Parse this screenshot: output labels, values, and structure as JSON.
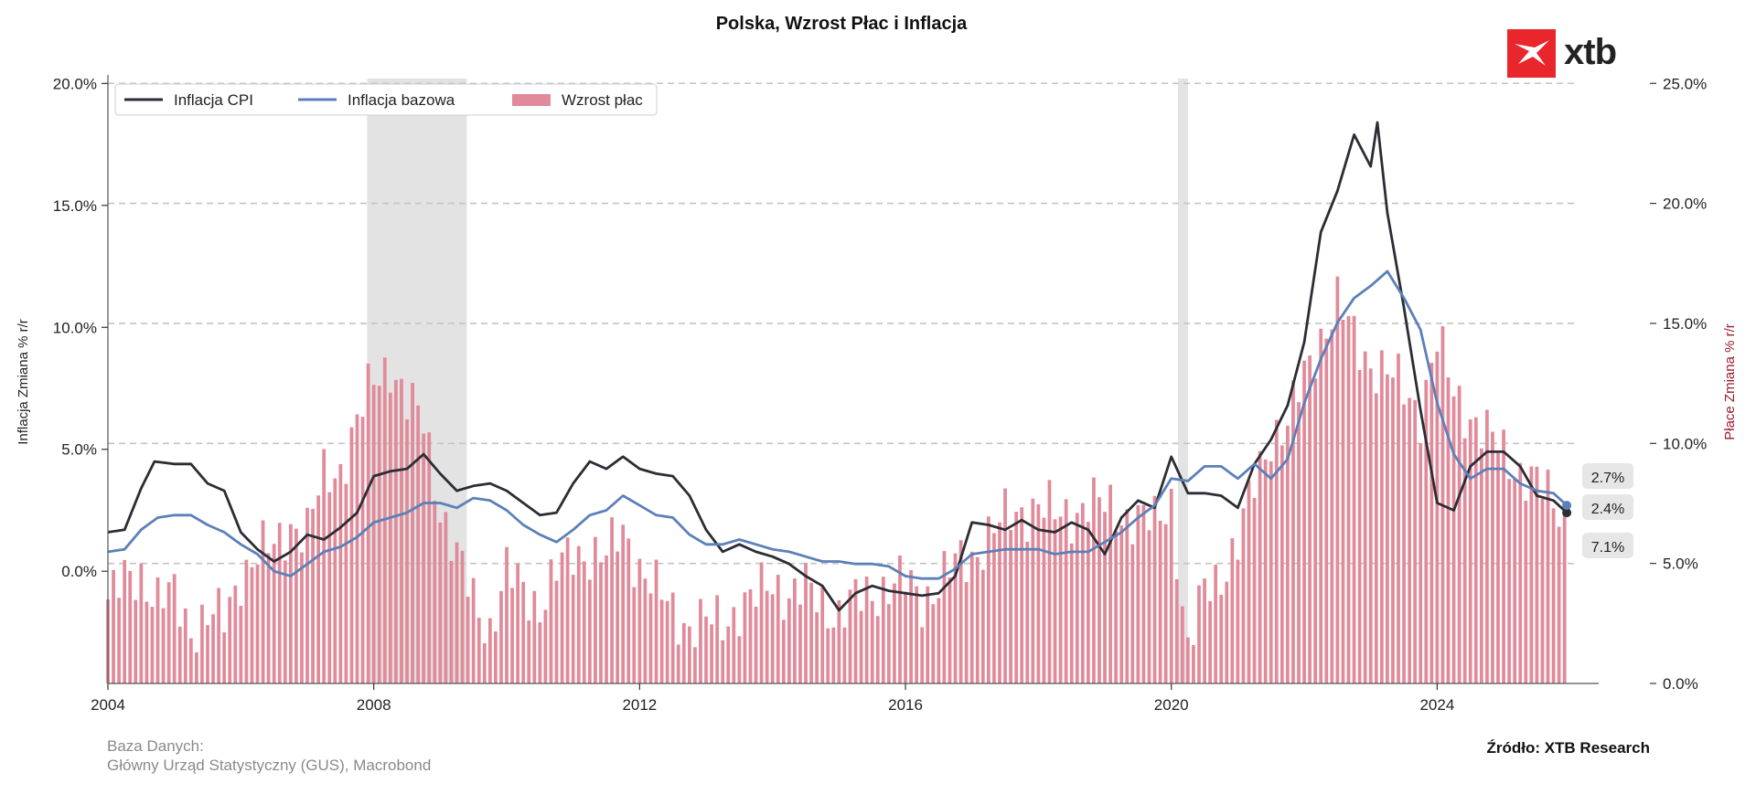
{
  "chart_data": {
    "type": "bar+line",
    "title": "Polska, Wzrost Płac i Inflacja",
    "left_axis": {
      "label": "Inflacja Zmiana % r/r",
      "range": [
        -4.6,
        20.2
      ],
      "ticks": [
        0,
        5,
        10,
        15,
        20
      ],
      "tick_labels": [
        "0.0%",
        "5.0%",
        "10.0%",
        "15.0%",
        "20.0%"
      ]
    },
    "right_axis": {
      "label": "Płace Zmiana % r/r",
      "range": [
        0,
        25.2
      ],
      "ticks": [
        0,
        5,
        10,
        15,
        20,
        25
      ],
      "tick_labels": [
        "0.0%",
        "5.0%",
        "10.0%",
        "15.0%",
        "20.0%",
        "25.0%"
      ]
    },
    "x_axis": {
      "range": [
        2004.0,
        2026.1
      ],
      "ticks": [
        2004,
        2008,
        2012,
        2016,
        2020,
        2024
      ],
      "tick_labels": [
        "2004",
        "2008",
        "2012",
        "2016",
        "2020",
        "2024"
      ]
    },
    "grid": "horizontal dashed",
    "legend_position": "top-left",
    "recession_shading": [
      [
        2007.9,
        2009.4
      ],
      [
        2020.1,
        2020.25
      ]
    ],
    "series": [
      {
        "name": "Inflacja CPI",
        "axis": "left",
        "style": "line",
        "color": "#2b2d35",
        "points": [
          [
            2004.0,
            1.6
          ],
          [
            2004.25,
            1.7
          ],
          [
            2004.5,
            3.4
          ],
          [
            2004.7,
            4.5
          ],
          [
            2005.0,
            4.4
          ],
          [
            2005.25,
            4.4
          ],
          [
            2005.5,
            3.6
          ],
          [
            2005.75,
            3.3
          ],
          [
            2006.0,
            1.6
          ],
          [
            2006.25,
            0.9
          ],
          [
            2006.5,
            0.4
          ],
          [
            2006.75,
            0.8
          ],
          [
            2007.0,
            1.5
          ],
          [
            2007.25,
            1.3
          ],
          [
            2007.5,
            1.8
          ],
          [
            2007.75,
            2.4
          ],
          [
            2008.0,
            3.9
          ],
          [
            2008.25,
            4.1
          ],
          [
            2008.5,
            4.2
          ],
          [
            2008.75,
            4.8
          ],
          [
            2009.0,
            4.0
          ],
          [
            2009.25,
            3.3
          ],
          [
            2009.5,
            3.5
          ],
          [
            2009.75,
            3.6
          ],
          [
            2010.0,
            3.3
          ],
          [
            2010.25,
            2.8
          ],
          [
            2010.5,
            2.3
          ],
          [
            2010.75,
            2.4
          ],
          [
            2011.0,
            3.6
          ],
          [
            2011.25,
            4.5
          ],
          [
            2011.5,
            4.2
          ],
          [
            2011.75,
            4.7
          ],
          [
            2012.0,
            4.2
          ],
          [
            2012.25,
            4.0
          ],
          [
            2012.5,
            3.9
          ],
          [
            2012.75,
            3.1
          ],
          [
            2013.0,
            1.7
          ],
          [
            2013.25,
            0.8
          ],
          [
            2013.5,
            1.1
          ],
          [
            2013.75,
            0.8
          ],
          [
            2014.0,
            0.6
          ],
          [
            2014.25,
            0.3
          ],
          [
            2014.5,
            -0.2
          ],
          [
            2014.75,
            -0.6
          ],
          [
            2015.0,
            -1.6
          ],
          [
            2015.25,
            -0.9
          ],
          [
            2015.5,
            -0.6
          ],
          [
            2015.75,
            -0.8
          ],
          [
            2016.0,
            -0.9
          ],
          [
            2016.25,
            -1.0
          ],
          [
            2016.5,
            -0.9
          ],
          [
            2016.75,
            -0.2
          ],
          [
            2017.0,
            2.0
          ],
          [
            2017.25,
            1.9
          ],
          [
            2017.5,
            1.7
          ],
          [
            2017.75,
            2.1
          ],
          [
            2018.0,
            1.7
          ],
          [
            2018.25,
            1.6
          ],
          [
            2018.5,
            2.0
          ],
          [
            2018.75,
            1.7
          ],
          [
            2019.0,
            0.7
          ],
          [
            2019.25,
            2.2
          ],
          [
            2019.5,
            2.9
          ],
          [
            2019.75,
            2.6
          ],
          [
            2020.0,
            4.7
          ],
          [
            2020.25,
            3.2
          ],
          [
            2020.5,
            3.2
          ],
          [
            2020.75,
            3.1
          ],
          [
            2021.0,
            2.6
          ],
          [
            2021.25,
            4.4
          ],
          [
            2021.5,
            5.4
          ],
          [
            2021.75,
            6.8
          ],
          [
            2022.0,
            9.4
          ],
          [
            2022.25,
            13.9
          ],
          [
            2022.5,
            15.6
          ],
          [
            2022.75,
            17.9
          ],
          [
            2023.0,
            16.6
          ],
          [
            2023.1,
            18.4
          ],
          [
            2023.25,
            14.7
          ],
          [
            2023.5,
            10.8
          ],
          [
            2023.75,
            6.6
          ],
          [
            2024.0,
            2.8
          ],
          [
            2024.25,
            2.5
          ],
          [
            2024.5,
            4.3
          ],
          [
            2024.75,
            4.9
          ],
          [
            2025.0,
            4.9
          ],
          [
            2025.25,
            4.3
          ],
          [
            2025.5,
            3.1
          ],
          [
            2025.75,
            2.9
          ],
          [
            2025.95,
            2.4
          ]
        ]
      },
      {
        "name": "Inflacja bazowa",
        "axis": "left",
        "style": "line",
        "color": "#5b80b8",
        "points": [
          [
            2004.0,
            0.8
          ],
          [
            2004.25,
            0.9
          ],
          [
            2004.5,
            1.7
          ],
          [
            2004.75,
            2.2
          ],
          [
            2005.0,
            2.3
          ],
          [
            2005.25,
            2.3
          ],
          [
            2005.5,
            1.9
          ],
          [
            2005.75,
            1.6
          ],
          [
            2006.0,
            1.1
          ],
          [
            2006.25,
            0.7
          ],
          [
            2006.5,
            0.0
          ],
          [
            2006.75,
            -0.2
          ],
          [
            2007.0,
            0.3
          ],
          [
            2007.25,
            0.8
          ],
          [
            2007.5,
            1.0
          ],
          [
            2007.75,
            1.4
          ],
          [
            2008.0,
            2.0
          ],
          [
            2008.25,
            2.2
          ],
          [
            2008.5,
            2.4
          ],
          [
            2008.75,
            2.8
          ],
          [
            2009.0,
            2.8
          ],
          [
            2009.25,
            2.6
          ],
          [
            2009.5,
            3.0
          ],
          [
            2009.75,
            2.9
          ],
          [
            2010.0,
            2.5
          ],
          [
            2010.25,
            1.9
          ],
          [
            2010.5,
            1.5
          ],
          [
            2010.75,
            1.2
          ],
          [
            2011.0,
            1.7
          ],
          [
            2011.25,
            2.3
          ],
          [
            2011.5,
            2.5
          ],
          [
            2011.75,
            3.1
          ],
          [
            2012.0,
            2.7
          ],
          [
            2012.25,
            2.3
          ],
          [
            2012.5,
            2.2
          ],
          [
            2012.75,
            1.5
          ],
          [
            2013.0,
            1.1
          ],
          [
            2013.25,
            1.1
          ],
          [
            2013.5,
            1.3
          ],
          [
            2013.75,
            1.1
          ],
          [
            2014.0,
            0.9
          ],
          [
            2014.25,
            0.8
          ],
          [
            2014.5,
            0.6
          ],
          [
            2014.75,
            0.4
          ],
          [
            2015.0,
            0.4
          ],
          [
            2015.25,
            0.3
          ],
          [
            2015.5,
            0.3
          ],
          [
            2015.75,
            0.2
          ],
          [
            2016.0,
            -0.2
          ],
          [
            2016.25,
            -0.3
          ],
          [
            2016.5,
            -0.3
          ],
          [
            2016.75,
            0.1
          ],
          [
            2017.0,
            0.7
          ],
          [
            2017.25,
            0.8
          ],
          [
            2017.5,
            0.9
          ],
          [
            2017.75,
            0.9
          ],
          [
            2018.0,
            0.9
          ],
          [
            2018.25,
            0.7
          ],
          [
            2018.5,
            0.8
          ],
          [
            2018.75,
            0.8
          ],
          [
            2019.0,
            1.2
          ],
          [
            2019.25,
            1.6
          ],
          [
            2019.5,
            2.2
          ],
          [
            2019.75,
            2.7
          ],
          [
            2020.0,
            3.8
          ],
          [
            2020.25,
            3.7
          ],
          [
            2020.5,
            4.3
          ],
          [
            2020.75,
            4.3
          ],
          [
            2021.0,
            3.8
          ],
          [
            2021.25,
            4.4
          ],
          [
            2021.5,
            3.8
          ],
          [
            2021.75,
            4.6
          ],
          [
            2022.0,
            6.9
          ],
          [
            2022.25,
            8.7
          ],
          [
            2022.5,
            10.2
          ],
          [
            2022.75,
            11.2
          ],
          [
            2023.0,
            11.7
          ],
          [
            2023.25,
            12.3
          ],
          [
            2023.5,
            11.2
          ],
          [
            2023.75,
            9.9
          ],
          [
            2024.0,
            6.9
          ],
          [
            2024.25,
            4.8
          ],
          [
            2024.5,
            3.8
          ],
          [
            2024.75,
            4.2
          ],
          [
            2025.0,
            4.2
          ],
          [
            2025.25,
            3.6
          ],
          [
            2025.5,
            3.3
          ],
          [
            2025.75,
            3.2
          ],
          [
            2025.95,
            2.7
          ]
        ]
      },
      {
        "name": "Wzrost płac",
        "axis": "right",
        "style": "bar",
        "color": "#e08a9a",
        "points": [
          [
            2004.0,
            3.5
          ],
          [
            2004.25,
            4.2
          ],
          [
            2004.5,
            4.6
          ],
          [
            2004.75,
            3.5
          ],
          [
            2005.0,
            3.6
          ],
          [
            2005.25,
            2.3
          ],
          [
            2005.5,
            2.8
          ],
          [
            2005.75,
            2.6
          ],
          [
            2006.0,
            4.6
          ],
          [
            2006.25,
            5.4
          ],
          [
            2006.5,
            5.6
          ],
          [
            2006.75,
            6.7
          ],
          [
            2007.0,
            6.3
          ],
          [
            2007.25,
            8.6
          ],
          [
            2007.5,
            9.0
          ],
          [
            2007.75,
            10.8
          ],
          [
            2008.0,
            12.6
          ],
          [
            2008.25,
            13.4
          ],
          [
            2008.5,
            11.6
          ],
          [
            2008.75,
            10.9
          ],
          [
            2009.0,
            7.4
          ],
          [
            2009.25,
            5.2
          ],
          [
            2009.5,
            3.5
          ],
          [
            2009.75,
            2.3
          ],
          [
            2010.0,
            4.6
          ],
          [
            2010.25,
            3.9
          ],
          [
            2010.5,
            3.3
          ],
          [
            2010.75,
            4.6
          ],
          [
            2011.0,
            5.4
          ],
          [
            2011.25,
            5.5
          ],
          [
            2011.5,
            5.2
          ],
          [
            2011.75,
            6.4
          ],
          [
            2012.0,
            4.9
          ],
          [
            2012.25,
            3.8
          ],
          [
            2012.5,
            3.1
          ],
          [
            2012.75,
            2.4
          ],
          [
            2013.0,
            2.5
          ],
          [
            2013.25,
            2.6
          ],
          [
            2013.5,
            3.2
          ],
          [
            2013.75,
            3.5
          ],
          [
            2014.0,
            4.3
          ],
          [
            2014.25,
            3.7
          ],
          [
            2014.5,
            3.9
          ],
          [
            2014.75,
            3.4
          ],
          [
            2015.0,
            2.9
          ],
          [
            2015.25,
            3.4
          ],
          [
            2015.5,
            3.8
          ],
          [
            2015.75,
            4.1
          ],
          [
            2016.0,
            4.2
          ],
          [
            2016.25,
            3.5
          ],
          [
            2016.5,
            4.2
          ],
          [
            2016.75,
            4.9
          ],
          [
            2017.0,
            5.3
          ],
          [
            2017.25,
            6.2
          ],
          [
            2017.5,
            6.8
          ],
          [
            2017.75,
            7.2
          ],
          [
            2018.0,
            7.5
          ],
          [
            2018.25,
            6.9
          ],
          [
            2018.5,
            7.1
          ],
          [
            2018.75,
            7.6
          ],
          [
            2019.0,
            7.3
          ],
          [
            2019.25,
            7.1
          ],
          [
            2019.5,
            6.9
          ],
          [
            2019.75,
            6.6
          ],
          [
            2020.0,
            7.7
          ],
          [
            2020.25,
            1.2
          ],
          [
            2020.5,
            3.9
          ],
          [
            2020.75,
            4.6
          ],
          [
            2021.0,
            5.8
          ],
          [
            2021.25,
            8.3
          ],
          [
            2021.5,
            10.4
          ],
          [
            2021.75,
            10.7
          ],
          [
            2022.0,
            12.8
          ],
          [
            2022.25,
            14.5
          ],
          [
            2022.5,
            15.8
          ],
          [
            2022.75,
            14.4
          ],
          [
            2023.0,
            13.4
          ],
          [
            2023.25,
            12.9
          ],
          [
            2023.5,
            12.2
          ],
          [
            2023.75,
            11.4
          ],
          [
            2024.0,
            14.2
          ],
          [
            2024.25,
            12.1
          ],
          [
            2024.5,
            11.2
          ],
          [
            2024.75,
            10.3
          ],
          [
            2025.0,
            9.6
          ],
          [
            2025.25,
            8.9
          ],
          [
            2025.5,
            8.3
          ],
          [
            2025.75,
            7.5
          ],
          [
            2025.95,
            7.1
          ]
        ]
      }
    ],
    "end_labels": [
      "2.7%",
      "2.4%",
      "7.1%"
    ]
  },
  "footer": {
    "source_label": "Baza Danych:",
    "source_text": "Główny Urząd Statystyczny (GUS), Macrobond",
    "attribution": "Źródło: XTB Research"
  },
  "logo": {
    "text": "xtb",
    "color": "#e8262c"
  }
}
